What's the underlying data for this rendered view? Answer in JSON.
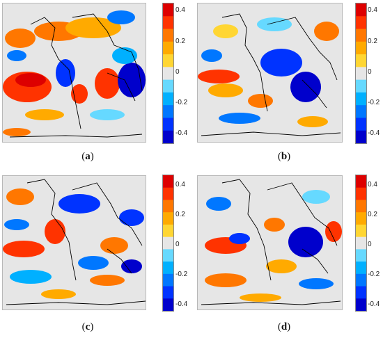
{
  "figure": {
    "colorbar": {
      "ticks": [
        "0.4",
        "0.2",
        "0",
        "-0.2",
        "-0.4"
      ],
      "range": [
        -0.5,
        0.5
      ],
      "colors": [
        "#0000cc",
        "#0033ff",
        "#0077ff",
        "#00b0ff",
        "#66d9ff",
        "#e6e6e6",
        "#ffd633",
        "#ffaa00",
        "#ff7700",
        "#ff3300",
        "#dd0000"
      ]
    },
    "map_background": "#e6e6e6",
    "coastline_color": "#000000",
    "panels": [
      {
        "id": "a",
        "caption_open": "(",
        "caption_letter": "a",
        "caption_close": ")"
      },
      {
        "id": "b",
        "caption_open": "(",
        "caption_letter": "b",
        "caption_close": ")"
      },
      {
        "id": "c",
        "caption_open": "(",
        "caption_letter": "c",
        "caption_close": ")"
      },
      {
        "id": "d",
        "caption_open": "(",
        "caption_letter": "d",
        "caption_close": ")"
      }
    ]
  }
}
